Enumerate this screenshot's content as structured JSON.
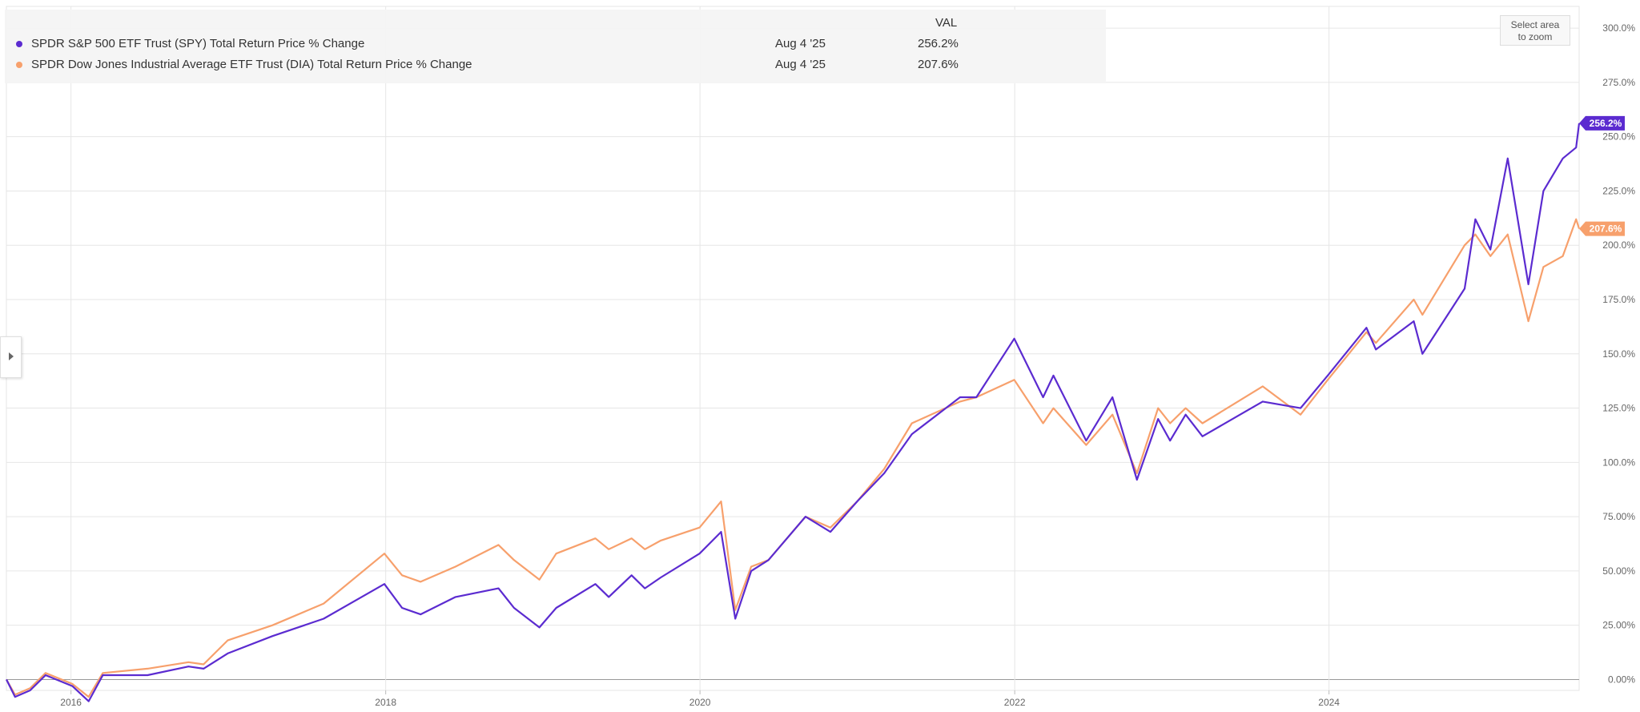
{
  "legend": {
    "header": "VAL",
    "series": [
      {
        "name": "SPDR S&P 500 ETF Trust (SPY) Total Return Price % Change",
        "date": "Aug 4 '25",
        "value": "256.2%",
        "color": "#5b2bd0"
      },
      {
        "name": "SPDR Dow Jones Industrial Average ETF Trust (DIA) Total Return Price % Change",
        "date": "Aug 4 '25",
        "value": "207.6%",
        "color": "#f7a06c"
      }
    ]
  },
  "zoom_button": {
    "line1": "Select area",
    "line2": "to zoom"
  },
  "side_toggle_icon": "caret-right-icon",
  "chart_data": {
    "type": "line",
    "xlim": [
      "2015-08-04",
      "2025-08-04"
    ],
    "ylim": [
      -5,
      310
    ],
    "x_ticks": [
      {
        "label": "2016",
        "date": "2016-01-01"
      },
      {
        "label": "2018",
        "date": "2018-01-01"
      },
      {
        "label": "2020",
        "date": "2020-01-01"
      },
      {
        "label": "2022",
        "date": "2022-01-01"
      },
      {
        "label": "2024",
        "date": "2024-01-01"
      }
    ],
    "y_ticks": [
      {
        "label": "0.00%",
        "value": 0
      },
      {
        "label": "25.00%",
        "value": 25
      },
      {
        "label": "50.00%",
        "value": 50
      },
      {
        "label": "75.00%",
        "value": 75
      },
      {
        "label": "100.0%",
        "value": 100
      },
      {
        "label": "125.0%",
        "value": 125
      },
      {
        "label": "150.0%",
        "value": 150
      },
      {
        "label": "175.0%",
        "value": 175
      },
      {
        "label": "200.0%",
        "value": 200
      },
      {
        "label": "225.0%",
        "value": 225
      },
      {
        "label": "250.0%",
        "value": 250
      },
      {
        "label": "275.0%",
        "value": 275
      },
      {
        "label": "300.0%",
        "value": 300
      }
    ],
    "grid": true,
    "series": [
      {
        "name": "SPDR S&P 500 ETF Trust (SPY) Total Return Price % Change",
        "color": "#5b2bd0",
        "end_label": "256.2%",
        "x": [
          "2015-08-04",
          "2015-08-24",
          "2015-09-28",
          "2015-11-03",
          "2016-01-04",
          "2016-02-11",
          "2016-03-15",
          "2016-06-27",
          "2016-09-30",
          "2016-11-04",
          "2016-12-30",
          "2017-04-13",
          "2017-08-10",
          "2017-12-29",
          "2018-02-08",
          "2018-03-23",
          "2018-06-12",
          "2018-09-20",
          "2018-10-26",
          "2018-12-24",
          "2019-02-01",
          "2019-05-03",
          "2019-06-03",
          "2019-07-26",
          "2019-08-26",
          "2019-10-02",
          "2019-12-31",
          "2020-02-19",
          "2020-03-23",
          "2020-04-29",
          "2020-06-08",
          "2020-09-02",
          "2020-10-30",
          "2020-12-31",
          "2021-03-04",
          "2021-05-07",
          "2021-08-27",
          "2021-10-04",
          "2021-12-31",
          "2022-03-08",
          "2022-04-01",
          "2022-06-16",
          "2022-08-16",
          "2022-10-12",
          "2022-11-30",
          "2022-12-28",
          "2023-02-02",
          "2023-03-13",
          "2023-07-31",
          "2023-10-27",
          "2023-12-29",
          "2024-03-28",
          "2024-04-19",
          "2024-07-16",
          "2024-08-05",
          "2024-11-11",
          "2024-12-06",
          "2025-01-10",
          "2025-02-19",
          "2025-04-08",
          "2025-05-13",
          "2025-06-27",
          "2025-07-28",
          "2025-08-04"
        ],
        "values": [
          0,
          -8,
          -5,
          2,
          -3,
          -10,
          2,
          2,
          6,
          5,
          12,
          20,
          28,
          44,
          33,
          30,
          38,
          42,
          33,
          24,
          33,
          44,
          38,
          48,
          42,
          47,
          58,
          68,
          28,
          50,
          55,
          75,
          68,
          82,
          95,
          113,
          130,
          130,
          157,
          130,
          140,
          110,
          130,
          92,
          120,
          110,
          122,
          112,
          128,
          125,
          140,
          162,
          152,
          165,
          150,
          180,
          212,
          198,
          240,
          182,
          225,
          240,
          245,
          256.2
        ]
      },
      {
        "name": "SPDR Dow Jones Industrial Average ETF Trust (DIA) Total Return Price % Change",
        "color": "#f7a06c",
        "end_label": "207.6%",
        "x": [
          "2015-08-04",
          "2015-08-24",
          "2015-09-28",
          "2015-11-03",
          "2016-01-04",
          "2016-02-11",
          "2016-03-15",
          "2016-06-27",
          "2016-09-30",
          "2016-11-04",
          "2016-12-30",
          "2017-04-13",
          "2017-08-10",
          "2017-12-29",
          "2018-02-08",
          "2018-03-23",
          "2018-06-12",
          "2018-09-20",
          "2018-10-26",
          "2018-12-24",
          "2019-02-01",
          "2019-05-03",
          "2019-06-03",
          "2019-07-26",
          "2019-08-26",
          "2019-10-02",
          "2019-12-31",
          "2020-02-19",
          "2020-03-23",
          "2020-04-29",
          "2020-06-08",
          "2020-09-02",
          "2020-10-30",
          "2020-12-31",
          "2021-03-04",
          "2021-05-07",
          "2021-08-27",
          "2021-10-04",
          "2021-12-31",
          "2022-03-08",
          "2022-04-01",
          "2022-06-16",
          "2022-08-16",
          "2022-10-12",
          "2022-11-30",
          "2022-12-28",
          "2023-02-02",
          "2023-03-13",
          "2023-07-31",
          "2023-10-27",
          "2023-12-29",
          "2024-03-28",
          "2024-04-19",
          "2024-07-16",
          "2024-08-05",
          "2024-11-11",
          "2024-12-06",
          "2025-01-10",
          "2025-02-19",
          "2025-04-08",
          "2025-05-13",
          "2025-06-27",
          "2025-07-28",
          "2025-08-04"
        ],
        "values": [
          0,
          -7,
          -4,
          3,
          -2,
          -8,
          3,
          5,
          8,
          7,
          18,
          25,
          35,
          58,
          48,
          45,
          52,
          62,
          55,
          46,
          58,
          65,
          60,
          65,
          60,
          64,
          70,
          82,
          32,
          52,
          55,
          75,
          70,
          82,
          97,
          118,
          128,
          130,
          138,
          118,
          125,
          108,
          122,
          95,
          125,
          118,
          125,
          118,
          135,
          122,
          138,
          160,
          155,
          175,
          168,
          200,
          205,
          195,
          205,
          165,
          190,
          195,
          212,
          207.6
        ]
      }
    ]
  }
}
